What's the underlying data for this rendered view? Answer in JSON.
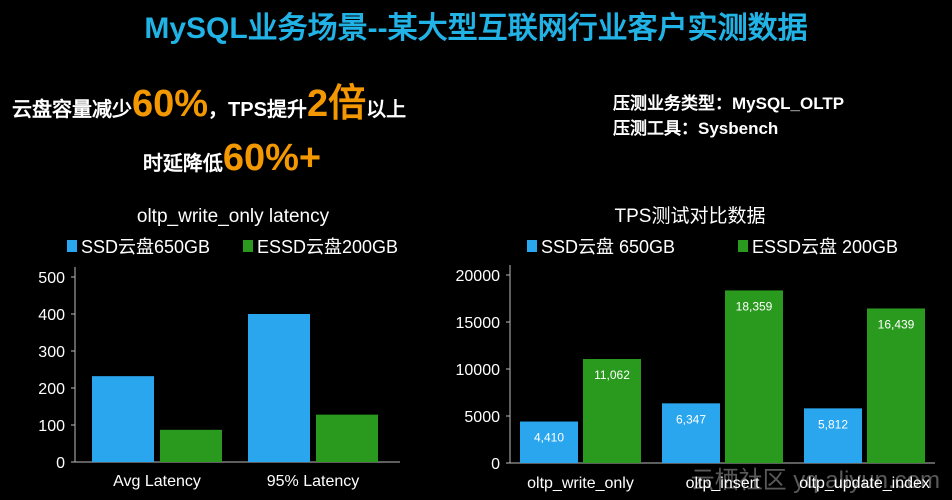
{
  "header": {
    "title": "MySQL业务场景--某大型互联网行业客户实测数据",
    "headline1": [
      "云盘容量减少",
      "60%",
      "，TPS提升",
      "2倍",
      "以上"
    ],
    "headline2": [
      "时延降低",
      "60%+"
    ],
    "info": [
      "压测业务类型：MySQL_OLTP",
      "压测工具：Sysbench"
    ],
    "watermark": "云栖社区 yq.aliyun.com"
  },
  "chart_data": [
    {
      "type": "bar",
      "title": "oltp_write_only  latency",
      "categories": [
        "Avg Latency",
        "95% Latency"
      ],
      "series": [
        {
          "name": "SSD云盘650GB",
          "color": "#2aa6ee",
          "values": [
            232,
            400
          ]
        },
        {
          "name": "ESSD云盘200GB",
          "color": "#2a9a1e",
          "values": [
            87,
            128
          ]
        }
      ],
      "ylim": [
        0,
        500
      ],
      "yticks": [
        0,
        100,
        200,
        300,
        400,
        500
      ]
    },
    {
      "type": "bar",
      "title": "TPS测试对比数据",
      "categories": [
        "oltp_write_only",
        "oltp_insert",
        "oltp_update_index"
      ],
      "series": [
        {
          "name": "SSD云盘 650GB",
          "color": "#2aa6ee",
          "values": [
            4410,
            6347,
            5812
          ],
          "value_labels": [
            "4,410",
            "6,347",
            "5,812"
          ]
        },
        {
          "name": "ESSD云盘 200GB",
          "color": "#2a9a1e",
          "values": [
            11062,
            18359,
            16439
          ],
          "value_labels": [
            "11,062",
            "18,359",
            "16,439"
          ]
        }
      ],
      "ylim": [
        0,
        20000
      ],
      "yticks": [
        0,
        5000,
        10000,
        15000,
        20000
      ]
    }
  ]
}
